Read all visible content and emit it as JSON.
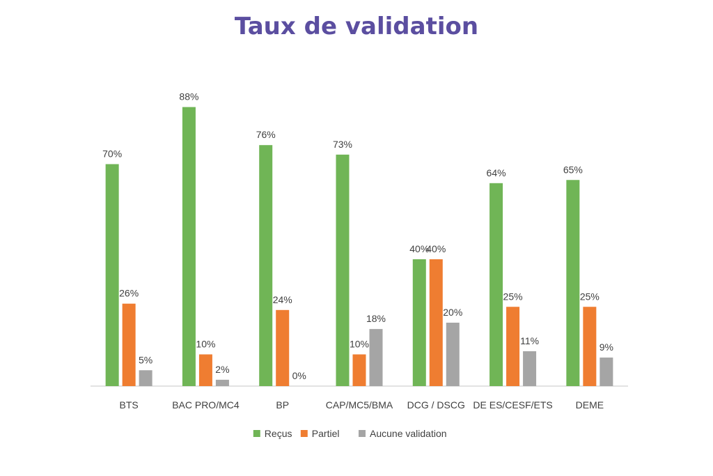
{
  "chart_data": {
    "type": "bar",
    "title": "Taux de validation",
    "categories": [
      "BTS",
      "BAC PRO/MC4",
      "BP",
      "CAP/MC5/BMA",
      "DCG / DSCG",
      "DE ES/CESF/ETS",
      "DEME"
    ],
    "series": [
      {
        "name": "Reçus",
        "color": "#70b556",
        "values": [
          70,
          88,
          76,
          73,
          40,
          64,
          65
        ],
        "labels": [
          "70%",
          "88%",
          "76%",
          "73%",
          "40%",
          "64%",
          "65%"
        ]
      },
      {
        "name": "Partiel",
        "color": "#ef7d31",
        "values": [
          26,
          10,
          24,
          10,
          40,
          25,
          25
        ],
        "labels": [
          "26%",
          "10%",
          "24%",
          "10%",
          "40%",
          "25%",
          "25%"
        ]
      },
      {
        "name": "Aucune validation",
        "color": "#a5a5a5",
        "values": [
          5,
          2,
          0,
          18,
          20,
          11,
          9
        ],
        "labels": [
          "5%",
          "2%",
          "0%",
          "18%",
          "20%",
          "11%",
          "9%"
        ]
      }
    ],
    "ylim": [
      0,
      100
    ],
    "grid": false,
    "legend_position": "bottom",
    "xlabel": "",
    "ylabel": ""
  }
}
